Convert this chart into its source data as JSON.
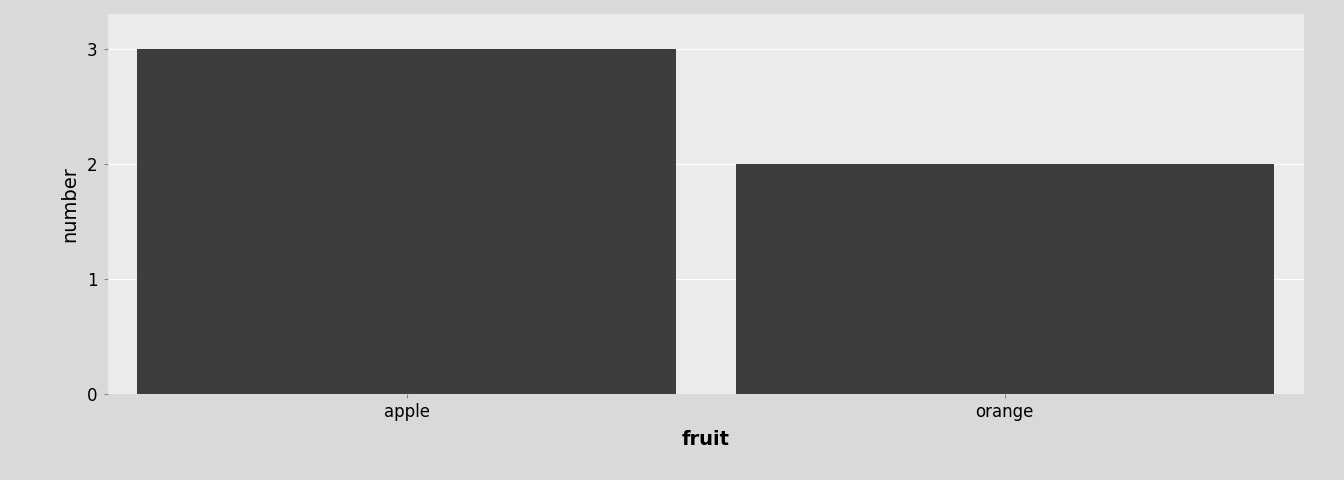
{
  "categories": [
    "apple",
    "orange"
  ],
  "values": [
    3,
    2
  ],
  "bar_color": "#3d3d3d",
  "xlabel": "fruit",
  "ylabel": "number",
  "ylim": [
    0,
    3.3
  ],
  "yticks": [
    0,
    1,
    2,
    3
  ],
  "panel_background": "#ebebeb",
  "outer_bg": "#d9d9d9",
  "xlabel_fontsize": 14,
  "ylabel_fontsize": 14,
  "tick_fontsize": 12,
  "bar_width": 0.9,
  "grid_color": "#ffffff",
  "grid_linewidth": 0.8
}
